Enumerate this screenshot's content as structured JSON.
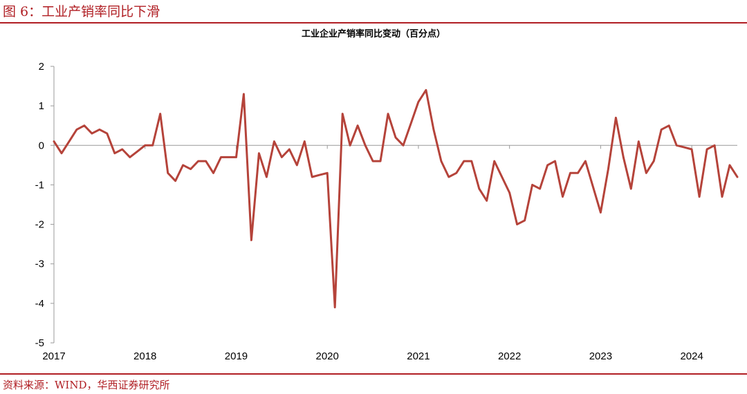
{
  "header": {
    "figure_title": "图 6：工业产销率同比下滑"
  },
  "footer": {
    "source": "资料来源：WIND，华西证券研究所"
  },
  "colors": {
    "accent": "#b01e23",
    "line": "#b5433a",
    "axis": "#999999"
  },
  "chart_data": {
    "type": "line",
    "title": "工业企业产销率同比变动（百分点）",
    "xlabel": "",
    "ylabel": "",
    "ylim": [
      -5,
      2
    ],
    "yticks": [
      2,
      1,
      0,
      -1,
      -2,
      -3,
      -4,
      -5
    ],
    "xticks": [
      "2017",
      "2018",
      "2019",
      "2020",
      "2021",
      "2022",
      "2023",
      "2024"
    ],
    "grid": false,
    "legend": "none",
    "x_start": "2017-01",
    "series": [
      {
        "values": [
          0.1,
          -0.2,
          0.1,
          0.4,
          0.5,
          0.3,
          0.4,
          0.3,
          -0.2,
          -0.1,
          -0.3,
          -0.15,
          0.0,
          0.0,
          0.8,
          -0.7,
          -0.9,
          -0.5,
          -0.6,
          -0.4,
          -0.4,
          -0.7,
          -0.3,
          -0.3,
          -0.3,
          1.3,
          -2.4,
          -0.2,
          -0.8,
          0.1,
          -0.3,
          -0.1,
          -0.5,
          0.1,
          -0.8,
          -0.75,
          -0.7,
          -4.1,
          0.8,
          0.0,
          0.5,
          0.0,
          -0.4,
          -0.4,
          0.8,
          0.2,
          0.0,
          0.55,
          1.1,
          1.4,
          0.4,
          -0.4,
          -0.8,
          -0.7,
          -0.4,
          -0.4,
          -1.1,
          -1.4,
          -0.4,
          -0.8,
          -1.2,
          -2.0,
          -1.9,
          -1.0,
          -1.1,
          -0.5,
          -0.4,
          -1.3,
          -0.7,
          -0.7,
          -0.4,
          -1.05,
          -1.7,
          -0.6,
          0.7,
          -0.3,
          -1.1,
          0.1,
          -0.7,
          -0.4,
          0.4,
          0.5,
          0.0,
          -0.05,
          -0.1,
          -1.3,
          -0.1,
          0.0,
          -1.3,
          -0.5,
          -0.8
        ]
      }
    ]
  }
}
